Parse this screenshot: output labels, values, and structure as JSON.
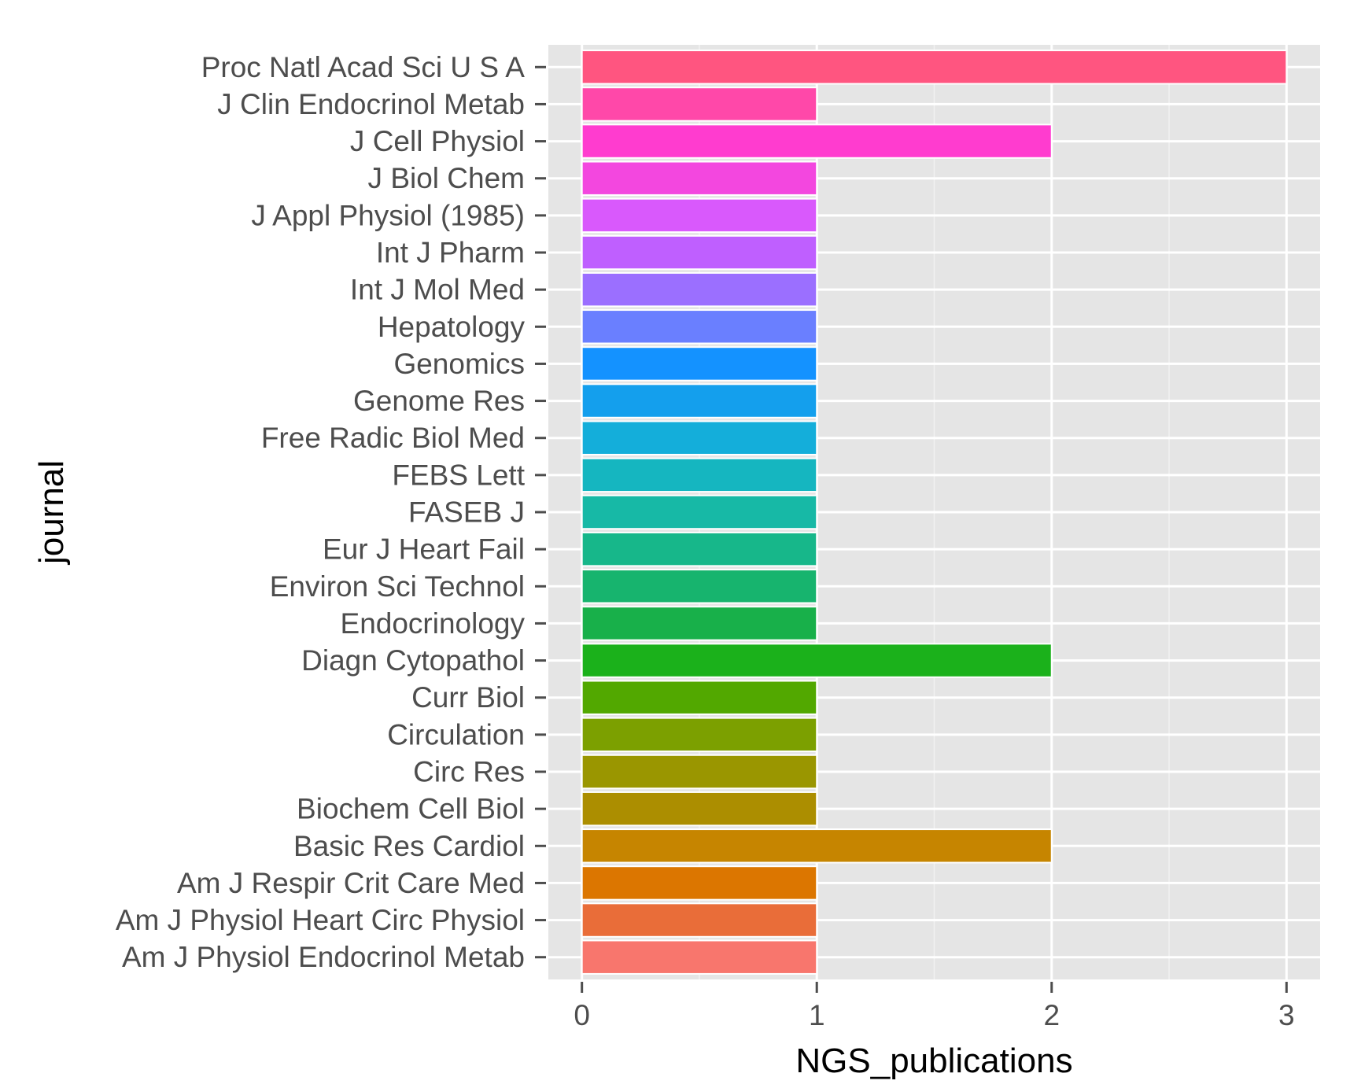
{
  "chart_data": {
    "type": "bar",
    "orientation": "horizontal",
    "xlabel": "NGS_publications",
    "ylabel": "journal",
    "xlim": [
      -0.143,
      3.143
    ],
    "xticks": [
      0,
      1,
      2,
      3
    ],
    "grid": true,
    "legend": "none",
    "categories": [
      "Am J Physiol Endocrinol Metab",
      "Am J Physiol Heart Circ Physiol",
      "Am J Respir Crit Care Med",
      "Basic Res Cardiol",
      "Biochem Cell Biol",
      "Circ Res",
      "Circulation",
      "Curr Biol",
      "Diagn Cytopathol",
      "Endocrinology",
      "Environ Sci Technol",
      "Eur J Heart Fail",
      "FASEB J",
      "FEBS Lett",
      "Free Radic Biol Med",
      "Genome Res",
      "Genomics",
      "Hepatology",
      "Int J Mol Med",
      "Int J Pharm",
      "J Appl Physiol (1985)",
      "J Biol Chem",
      "J Cell Physiol",
      "J Clin Endocrinol Metab",
      "Proc Natl Acad Sci U S A"
    ],
    "values": [
      1,
      1,
      1,
      2,
      1,
      1,
      1,
      1,
      2,
      1,
      1,
      1,
      1,
      1,
      1,
      1,
      1,
      1,
      1,
      1,
      1,
      1,
      2,
      1,
      3
    ],
    "colors": [
      "#F8766D",
      "#E96D39",
      "#DC7600",
      "#C68500",
      "#AC8E00",
      "#9A9600",
      "#7CA000",
      "#52A800",
      "#1BB11B",
      "#18B04A",
      "#17B46E",
      "#17B78A",
      "#17B9A6",
      "#15B6C0",
      "#14AEDA",
      "#149FED",
      "#1492FF",
      "#6A7FFF",
      "#9B6FFF",
      "#BF5FFF",
      "#D959FC",
      "#F347DF",
      "#FF3CCF",
      "#FF48A9",
      "#FF5580"
    ]
  }
}
